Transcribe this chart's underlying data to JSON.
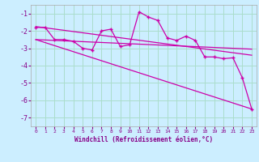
{
  "xlabel": "Windchill (Refroidissement éolien,°C)",
  "bg_color": "#cceeff",
  "grid_color": "#aaddcc",
  "line_color": "#cc00aa",
  "xlim": [
    -0.5,
    23.5
  ],
  "ylim": [
    -7.5,
    -0.5
  ],
  "xticks": [
    0,
    1,
    2,
    3,
    4,
    5,
    6,
    7,
    8,
    9,
    10,
    11,
    12,
    13,
    14,
    15,
    16,
    17,
    18,
    19,
    20,
    21,
    22,
    23
  ],
  "yticks": [
    -7,
    -6,
    -5,
    -4,
    -3,
    -2,
    -1
  ],
  "data_x": [
    0,
    1,
    2,
    3,
    4,
    5,
    6,
    7,
    8,
    9,
    10,
    11,
    12,
    13,
    14,
    15,
    16,
    17,
    18,
    19,
    20,
    21,
    22,
    23
  ],
  "data_y": [
    -1.8,
    -1.8,
    -2.5,
    -2.5,
    -2.6,
    -3.0,
    -3.1,
    -2.0,
    -1.9,
    -2.9,
    -2.8,
    -0.9,
    -1.2,
    -1.4,
    -2.4,
    -2.55,
    -2.3,
    -2.55,
    -3.5,
    -3.5,
    -3.6,
    -3.55,
    -4.7,
    -6.5
  ],
  "trend1_x": [
    0,
    23
  ],
  "trend1_y": [
    -1.75,
    -3.4
  ],
  "trend2_x": [
    0,
    23
  ],
  "trend2_y": [
    -2.5,
    -3.05
  ],
  "trend3_x": [
    0,
    23
  ],
  "trend3_y": [
    -2.5,
    -6.5
  ]
}
